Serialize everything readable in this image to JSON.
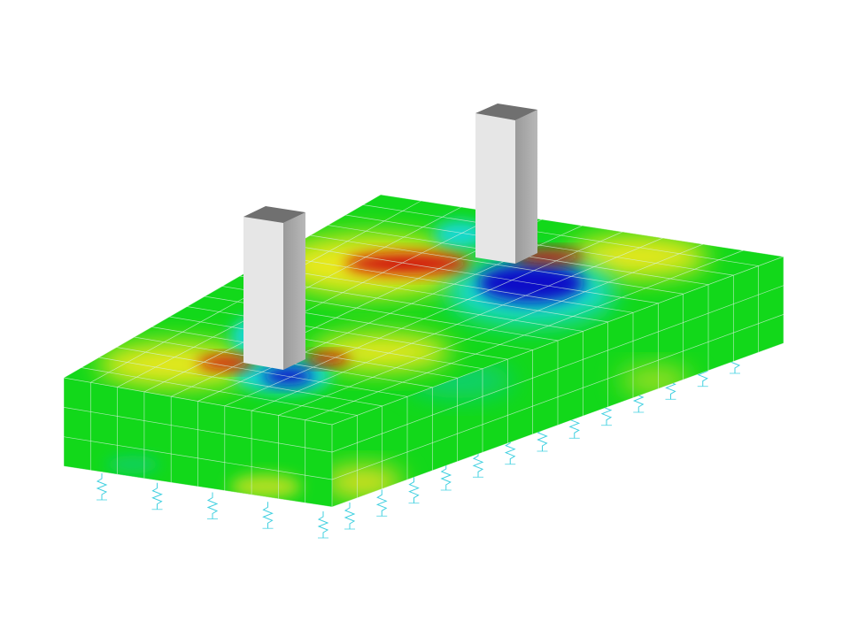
{
  "scene": {
    "background": "#ffffff",
    "colors": {
      "base_green": "#12d81a",
      "yellow": "#e8e81a",
      "red": "#d01010",
      "blue": "#0a10c8",
      "cyan": "#18d8d0",
      "grid": "#d8f0e0",
      "spring": "#40d0e0",
      "column_front": "#e6e6e6",
      "column_side": "#a8a8a8",
      "column_top": "#707070"
    },
    "objects": [
      "foundation-slab",
      "column-left",
      "column-right",
      "elastic-supports"
    ]
  }
}
